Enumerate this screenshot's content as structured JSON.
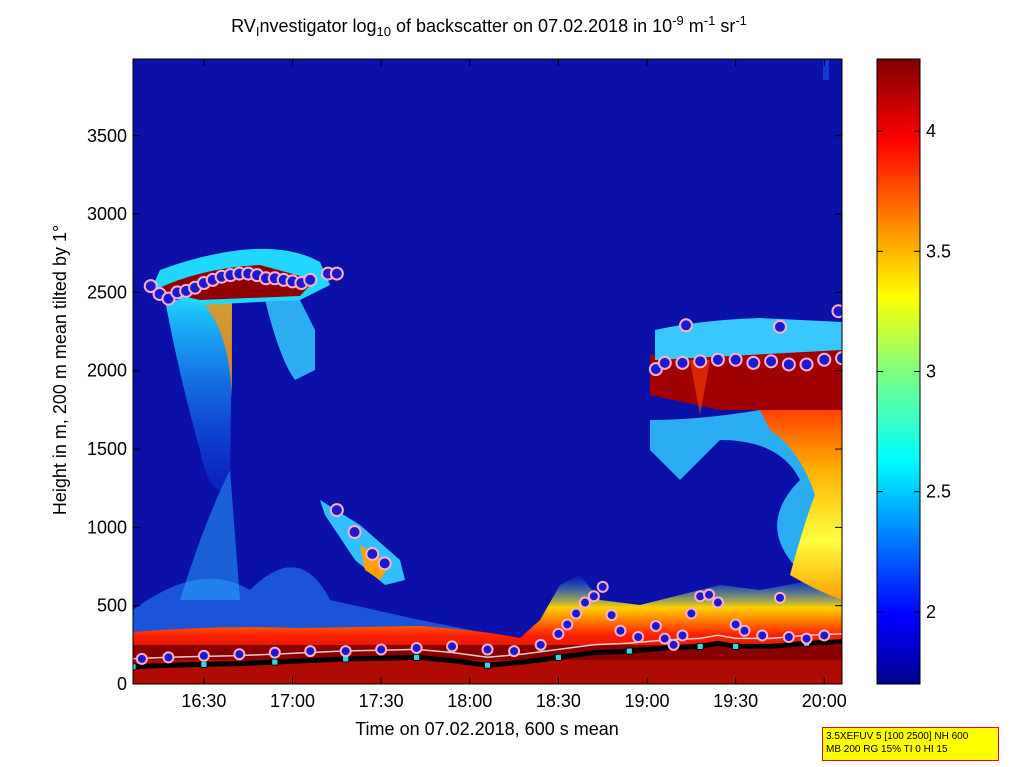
{
  "chart_data": {
    "type": "heatmap",
    "title_parts": {
      "a": "RV",
      "b": "I",
      "c": "nvestigator log",
      "d": "10",
      "e": " of backscatter on 07.02.2018 in 10",
      "f": "-9",
      "g": " m",
      "h": "-1",
      "i": " sr",
      "j": "-1"
    },
    "xlabel": "Time on 07.02.2018, 600 s mean",
    "ylabel": "Height in m, 200 m mean tilted by 1°",
    "x_range_hours": [
      16.1,
      20.1
    ],
    "y_range": [
      0,
      3990
    ],
    "x_ticks": [
      {
        "h": 16.5,
        "label": "16:30"
      },
      {
        "h": 17.0,
        "label": "17:00"
      },
      {
        "h": 17.5,
        "label": "17:30"
      },
      {
        "h": 18.0,
        "label": "18:00"
      },
      {
        "h": 18.5,
        "label": "18:30"
      },
      {
        "h": 19.0,
        "label": "19:00"
      },
      {
        "h": 19.5,
        "label": "19:30"
      },
      {
        "h": 20.0,
        "label": "20:00"
      }
    ],
    "y_ticks": [
      0,
      500,
      1000,
      1500,
      2000,
      2500,
      3000,
      3500
    ],
    "colorbar": {
      "min": 1.7,
      "max": 4.3,
      "ticks": [
        2,
        2.5,
        3,
        3.5,
        4
      ],
      "tick_labels": [
        "2",
        "2.5",
        "3",
        "3.5",
        "4"
      ]
    },
    "colors": {
      "background_field": "#0a10a8",
      "marker_fill": "#1a1ad0",
      "marker_edge": "#ffb0c8",
      "boundary_black": "#000000",
      "boundary_cyan": "#30d8e0"
    },
    "cloud_layers": [
      {
        "name": "upper-layer",
        "points": [
          [
            16.2,
            2540
          ],
          [
            16.25,
            2490
          ],
          [
            16.3,
            2460
          ],
          [
            16.35,
            2500
          ],
          [
            16.4,
            2510
          ],
          [
            16.45,
            2530
          ],
          [
            16.5,
            2560
          ],
          [
            16.55,
            2580
          ],
          [
            16.6,
            2600
          ],
          [
            16.65,
            2610
          ],
          [
            16.7,
            2620
          ],
          [
            16.75,
            2620
          ],
          [
            16.8,
            2610
          ],
          [
            16.85,
            2590
          ],
          [
            16.9,
            2590
          ],
          [
            16.95,
            2580
          ],
          [
            17.0,
            2570
          ],
          [
            17.05,
            2560
          ],
          [
            17.1,
            2580
          ],
          [
            17.2,
            2620
          ],
          [
            17.25,
            2620
          ]
        ]
      },
      {
        "name": "descending-cloud",
        "points": [
          [
            17.25,
            1110
          ],
          [
            17.35,
            970
          ],
          [
            17.45,
            830
          ],
          [
            17.52,
            770
          ]
        ]
      },
      {
        "name": "evening-layer",
        "points": [
          [
            19.05,
            2010
          ],
          [
            19.1,
            2050
          ],
          [
            19.2,
            2050
          ],
          [
            19.3,
            2060
          ],
          [
            19.4,
            2070
          ],
          [
            19.5,
            2070
          ],
          [
            19.6,
            2050
          ],
          [
            19.7,
            2060
          ],
          [
            19.8,
            2040
          ],
          [
            19.9,
            2040
          ],
          [
            20.0,
            2070
          ],
          [
            20.1,
            2080
          ]
        ],
        "extra": [
          [
            19.22,
            2290
          ],
          [
            19.75,
            2280
          ],
          [
            20.08,
            2380
          ]
        ]
      }
    ],
    "boundary_layer_markers": [
      [
        16.15,
        160
      ],
      [
        16.3,
        170
      ],
      [
        16.5,
        180
      ],
      [
        16.7,
        190
      ],
      [
        16.9,
        200
      ],
      [
        17.1,
        210
      ],
      [
        17.3,
        210
      ],
      [
        17.5,
        220
      ],
      [
        17.7,
        230
      ],
      [
        17.9,
        240
      ],
      [
        18.1,
        220
      ],
      [
        18.25,
        210
      ],
      [
        18.4,
        250
      ],
      [
        18.5,
        320
      ],
      [
        18.55,
        380
      ],
      [
        18.6,
        450
      ],
      [
        18.65,
        520
      ],
      [
        18.7,
        560
      ],
      [
        18.75,
        620
      ],
      [
        18.8,
        440
      ],
      [
        18.85,
        340
      ],
      [
        18.95,
        300
      ],
      [
        19.05,
        370
      ],
      [
        19.1,
        290
      ],
      [
        19.15,
        250
      ],
      [
        19.2,
        310
      ],
      [
        19.25,
        450
      ],
      [
        19.3,
        560
      ],
      [
        19.35,
        570
      ],
      [
        19.4,
        520
      ],
      [
        19.5,
        380
      ],
      [
        19.55,
        340
      ],
      [
        19.65,
        310
      ],
      [
        19.75,
        550
      ],
      [
        19.8,
        300
      ],
      [
        19.9,
        290
      ],
      [
        20.0,
        310
      ]
    ]
  },
  "info_box": {
    "line1": "3.5XEFUV 5 [100 2500] NH 600",
    "line2": "MB 200 RG 15% TI 0 HI 15"
  }
}
